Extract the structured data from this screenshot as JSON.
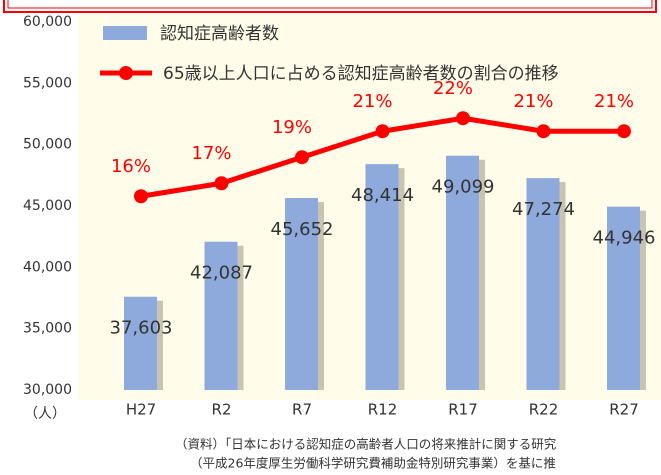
{
  "chart_data": {
    "type": "bar",
    "categories": [
      "H27",
      "R2",
      "R7",
      "R12",
      "R17",
      "R22",
      "R27"
    ],
    "series": [
      {
        "name": "認知症高齢者数",
        "type": "bar",
        "color": "#8ea9db",
        "values": [
          37603,
          42087,
          45652,
          48414,
          49099,
          47274,
          44946
        ],
        "value_labels": [
          "37,603",
          "42,087",
          "45,652",
          "48,414",
          "49,099",
          "47,274",
          "44,946"
        ]
      },
      {
        "name": "65歳以上人口に占める認知症高齢者数の割合の推移",
        "type": "line",
        "axis": "y2",
        "color": "#ff0000",
        "values": [
          16,
          17,
          19,
          21,
          22,
          21,
          21
        ],
        "value_labels": [
          "16%",
          "17%",
          "19%",
          "21%",
          "22%",
          "21%",
          "21%"
        ]
      }
    ],
    "ylim": [
      30000,
      60000
    ],
    "yticks": [
      {
        "value": 30000,
        "label": "30,000"
      },
      {
        "value": 35000,
        "label": "35,000"
      },
      {
        "value": 40000,
        "label": "40,000"
      },
      {
        "value": 45000,
        "label": "45,000"
      },
      {
        "value": 50000,
        "label": "50,000"
      },
      {
        "value": 55000,
        "label": "55,000"
      },
      {
        "value": 60000,
        "label": "60,000"
      }
    ],
    "y2lim": [
      1.1,
      29.4
    ],
    "y_unit": "（人）",
    "notes": [
      "（資料）「日本における認知症の高齢者人口の将来推計に関する研究",
      "（平成26年度厚生労働科学研究費補助金特別研究事業）を基に推"
    ],
    "grid": false
  }
}
